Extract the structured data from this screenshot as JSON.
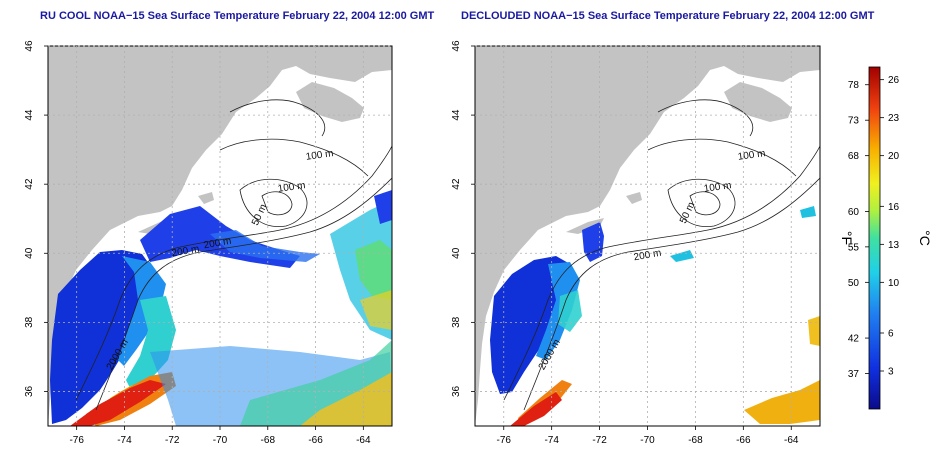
{
  "panels": [
    {
      "title": "RU COOL NOAA−15 Sea Surface Temperature February 22, 2004 12:00 GMT",
      "contour_labels": [
        "100 m",
        "100 m",
        "50 m",
        "200 m",
        "200 m",
        "2000 m"
      ]
    },
    {
      "title": "DECLOUDED NOAA−15 Sea Surface Temperature February 22, 2004 12:00 GMT",
      "contour_labels": [
        "100 m",
        "100 m",
        "50 m",
        "200 m",
        "2000 m"
      ]
    }
  ],
  "axes": {
    "lon_ticks": [
      "-76",
      "-74",
      "-72",
      "-70",
      "-68",
      "-66",
      "-64"
    ],
    "lat_ticks": [
      "46",
      "44",
      "42",
      "40",
      "38",
      "36"
    ],
    "lon_range": [
      -77.2,
      -62.8
    ],
    "lat_range": [
      35,
      46
    ]
  },
  "colorbar": {
    "f_label": "°F",
    "c_label": "°C",
    "f_ticks": [
      {
        "label": "78",
        "c": 25.6
      },
      {
        "label": "73",
        "c": 22.8
      },
      {
        "label": "68",
        "c": 20.0
      },
      {
        "label": "60",
        "c": 15.6
      },
      {
        "label": "55",
        "c": 12.8
      },
      {
        "label": "50",
        "c": 10.0
      },
      {
        "label": "42",
        "c": 5.6
      },
      {
        "label": "37",
        "c": 2.8
      }
    ],
    "c_ticks": [
      "26",
      "23",
      "20",
      "16",
      "13",
      "10",
      "6",
      "3"
    ],
    "c_values": [
      26,
      23,
      20,
      16,
      13,
      10,
      6,
      3
    ],
    "range_c": [
      0,
      27
    ]
  },
  "colors": {
    "land": "#c3c3c3",
    "ocean_nodata": "#ffffff",
    "title": "#1a1aa0",
    "grid": "#b0b0b0"
  }
}
